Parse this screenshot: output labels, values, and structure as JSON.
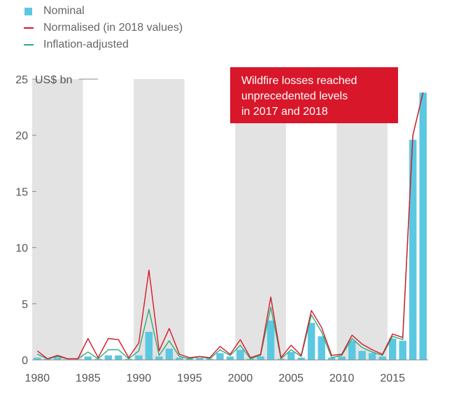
{
  "legend": {
    "nominal": "Nominal",
    "normalised": "Normalised (in 2018 values)",
    "inflation": "Inflation-adjusted"
  },
  "colors": {
    "nominal": "#5bc8e2",
    "normalised": "#d8172a",
    "inflation": "#2eab77",
    "band": "#e3e3e3",
    "axis": "#888888",
    "callout": "#d8172a"
  },
  "callout": {
    "lines": [
      "Wildfire losses reached",
      "unprecedented levels",
      "in 2017 and 2018"
    ]
  },
  "chart_data": {
    "type": "bar",
    "y_unit_label": "US$ bn",
    "ylim": [
      0,
      25
    ],
    "yticks": [
      0,
      5,
      10,
      15,
      20,
      25
    ],
    "xlim": [
      1979.5,
      2018.5
    ],
    "xticks": [
      1980,
      1985,
      1990,
      1995,
      2000,
      2005,
      2010,
      2015
    ],
    "shaded_bands": [
      [
        1979.5,
        1984.5
      ],
      [
        1989.5,
        1994.5
      ],
      [
        1999.5,
        2004.5
      ],
      [
        2009.5,
        2014.5
      ]
    ],
    "years": [
      1980,
      1981,
      1982,
      1983,
      1984,
      1985,
      1986,
      1987,
      1988,
      1989,
      1990,
      1991,
      1992,
      1993,
      1994,
      1995,
      1996,
      1997,
      1998,
      1999,
      2000,
      2001,
      2002,
      2003,
      2004,
      2005,
      2006,
      2007,
      2008,
      2009,
      2010,
      2011,
      2012,
      2013,
      2014,
      2015,
      2016,
      2017,
      2018
    ],
    "series": [
      {
        "name": "Nominal",
        "type": "bar",
        "values": [
          0.2,
          0.1,
          0.2,
          0.05,
          0.05,
          0.3,
          0.1,
          0.4,
          0.4,
          0.1,
          0.4,
          2.5,
          0.3,
          1.0,
          0.2,
          0.1,
          0.2,
          0.1,
          0.6,
          0.3,
          0.9,
          0.1,
          0.3,
          3.5,
          0.1,
          0.7,
          0.2,
          3.3,
          2.1,
          0.2,
          0.3,
          1.7,
          0.8,
          0.6,
          0.3,
          1.9,
          1.7,
          19.6,
          23.8
        ]
      },
      {
        "name": "Normalised (in 2018 values)",
        "type": "line",
        "values": [
          0.8,
          0.1,
          0.4,
          0.1,
          0.1,
          1.9,
          0.2,
          1.9,
          1.8,
          0.2,
          1.5,
          8.0,
          0.8,
          2.8,
          0.5,
          0.2,
          0.3,
          0.2,
          1.2,
          0.5,
          1.8,
          0.2,
          0.5,
          5.6,
          0.2,
          1.3,
          0.4,
          4.4,
          2.9,
          0.4,
          0.5,
          2.2,
          1.4,
          0.9,
          0.5,
          2.3,
          2.0,
          20.0,
          23.8
        ]
      },
      {
        "name": "Inflation-adjusted",
        "type": "line",
        "values": [
          0.5,
          0.1,
          0.3,
          0.1,
          0.1,
          0.7,
          0.1,
          0.9,
          0.9,
          0.1,
          0.8,
          4.5,
          0.4,
          1.7,
          0.3,
          0.1,
          0.3,
          0.1,
          0.9,
          0.4,
          1.3,
          0.1,
          0.4,
          4.7,
          0.1,
          0.9,
          0.3,
          4.0,
          2.5,
          0.2,
          0.4,
          1.9,
          1.1,
          0.7,
          0.4,
          2.1,
          1.8,
          20.0,
          23.8
        ]
      }
    ]
  }
}
